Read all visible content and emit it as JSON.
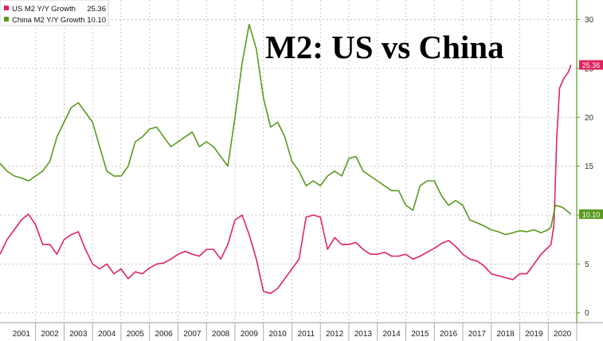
{
  "chart_data": {
    "type": "line",
    "title": "M2: US vs China",
    "xlabel": "",
    "ylabel": "",
    "x_tick_labels": [
      "2001",
      "2002",
      "2003",
      "2004",
      "2005",
      "2006",
      "2007",
      "2008",
      "2009",
      "2010",
      "2011",
      "2012",
      "2013",
      "2014",
      "2015",
      "2016",
      "2017",
      "2018",
      "2019",
      "2020"
    ],
    "y_ticks": [
      0,
      5,
      10,
      15,
      20,
      25,
      30
    ],
    "y_tick_labels": [
      "0",
      "5",
      "10",
      "15",
      "20",
      "25",
      "30"
    ],
    "ylim": [
      -1,
      32
    ],
    "xlim": [
      2000.75,
      2021.0
    ],
    "grid": true,
    "y_axis_side": "right",
    "legend_placement": "top-left",
    "series": [
      {
        "name": "US M2 Y/Y Growth",
        "legend_value": "25.36",
        "last_value_label": "25.36",
        "color": "#e0245e",
        "x": [
          2000.75,
          2001.0,
          2001.25,
          2001.5,
          2001.75,
          2002.0,
          2002.25,
          2002.5,
          2002.75,
          2003.0,
          2003.25,
          2003.5,
          2003.75,
          2004.0,
          2004.25,
          2004.5,
          2004.75,
          2005.0,
          2005.25,
          2005.5,
          2005.75,
          2006.0,
          2006.25,
          2006.5,
          2006.75,
          2007.0,
          2007.25,
          2007.5,
          2007.75,
          2008.0,
          2008.25,
          2008.5,
          2008.75,
          2009.0,
          2009.25,
          2009.5,
          2009.75,
          2010.0,
          2010.25,
          2010.5,
          2010.75,
          2011.0,
          2011.25,
          2011.5,
          2011.75,
          2012.0,
          2012.25,
          2012.5,
          2012.75,
          2013.0,
          2013.25,
          2013.5,
          2013.75,
          2014.0,
          2014.25,
          2014.5,
          2014.75,
          2015.0,
          2015.25,
          2015.5,
          2015.75,
          2016.0,
          2016.25,
          2016.5,
          2016.75,
          2017.0,
          2017.25,
          2017.5,
          2017.75,
          2018.0,
          2018.25,
          2018.5,
          2018.75,
          2019.0,
          2019.25,
          2019.5,
          2019.75,
          2020.0,
          2020.1,
          2020.2,
          2020.3,
          2020.4,
          2020.55,
          2020.7,
          2020.8
        ],
        "y": [
          6.0,
          7.5,
          8.5,
          9.5,
          10.1,
          9.0,
          7.0,
          7.0,
          6.0,
          7.5,
          8.0,
          8.3,
          6.5,
          5.0,
          4.5,
          5.0,
          4.0,
          4.5,
          3.5,
          4.2,
          4.0,
          4.6,
          5.0,
          5.1,
          5.5,
          6.0,
          6.3,
          6.0,
          5.8,
          6.5,
          6.5,
          5.5,
          7.0,
          9.5,
          10.0,
          8.0,
          5.5,
          2.2,
          2.0,
          2.5,
          3.5,
          4.5,
          5.5,
          9.8,
          10.0,
          9.8,
          6.5,
          7.7,
          7.0,
          7.0,
          7.2,
          6.5,
          6.0,
          6.0,
          6.2,
          5.8,
          5.8,
          6.0,
          5.5,
          5.8,
          6.2,
          6.6,
          7.1,
          7.4,
          6.8,
          6.0,
          5.5,
          5.3,
          4.8,
          4.0,
          3.8,
          3.6,
          3.4,
          4.0,
          4.0,
          5.0,
          6.0,
          6.7,
          7.0,
          9.0,
          18.0,
          23.0,
          24.0,
          24.6,
          25.36
        ]
      },
      {
        "name": "China M2 Y/Y Growth",
        "legend_value": "10.10",
        "last_value_label": "10.10",
        "color": "#5a9a1e",
        "x": [
          2000.75,
          2001.0,
          2001.25,
          2001.5,
          2001.75,
          2002.0,
          2002.25,
          2002.5,
          2002.75,
          2003.0,
          2003.25,
          2003.5,
          2003.75,
          2004.0,
          2004.25,
          2004.5,
          2004.75,
          2005.0,
          2005.25,
          2005.5,
          2005.75,
          2006.0,
          2006.25,
          2006.5,
          2006.75,
          2007.0,
          2007.25,
          2007.5,
          2007.75,
          2008.0,
          2008.25,
          2008.5,
          2008.75,
          2009.0,
          2009.25,
          2009.5,
          2009.75,
          2010.0,
          2010.25,
          2010.5,
          2010.75,
          2011.0,
          2011.25,
          2011.5,
          2011.75,
          2012.0,
          2012.25,
          2012.5,
          2012.75,
          2013.0,
          2013.25,
          2013.5,
          2013.75,
          2014.0,
          2014.25,
          2014.5,
          2014.75,
          2015.0,
          2015.25,
          2015.5,
          2015.75,
          2016.0,
          2016.25,
          2016.5,
          2016.75,
          2017.0,
          2017.25,
          2017.5,
          2017.75,
          2018.0,
          2018.25,
          2018.5,
          2018.75,
          2019.0,
          2019.25,
          2019.5,
          2019.75,
          2020.0,
          2020.1,
          2020.25,
          2020.5,
          2020.8
        ],
        "y": [
          15.3,
          14.5,
          14.0,
          13.8,
          13.5,
          14.0,
          14.5,
          15.5,
          18.0,
          19.5,
          21.0,
          21.5,
          20.5,
          19.5,
          17.0,
          14.5,
          14.0,
          14.0,
          15.0,
          17.5,
          18.0,
          18.8,
          19.0,
          18.0,
          17.0,
          17.5,
          18.0,
          18.5,
          17.0,
          17.5,
          17.0,
          16.0,
          15.0,
          20.0,
          25.5,
          29.5,
          27.0,
          22.0,
          19.0,
          19.5,
          18.0,
          15.5,
          14.5,
          13.0,
          13.5,
          13.0,
          14.0,
          14.5,
          14.0,
          15.8,
          16.0,
          14.5,
          14.0,
          13.5,
          13.0,
          12.5,
          12.5,
          11.0,
          10.5,
          13.0,
          13.5,
          13.5,
          12.0,
          11.0,
          11.5,
          11.0,
          9.5,
          9.2,
          8.9,
          8.5,
          8.3,
          8.0,
          8.2,
          8.4,
          8.3,
          8.5,
          8.2,
          8.5,
          8.8,
          11.0,
          10.8,
          10.1
        ]
      }
    ]
  }
}
